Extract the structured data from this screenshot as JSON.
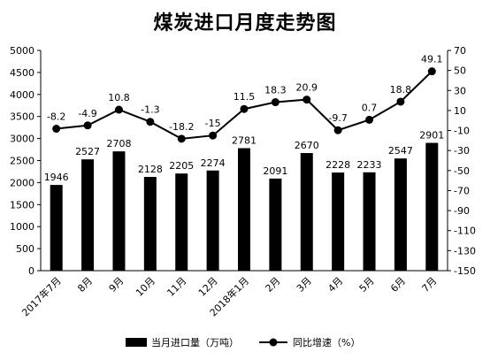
{
  "chart_data": {
    "type": "bar",
    "title": "煤炭进口月度走势图",
    "categories": [
      "2017年7月",
      "8月",
      "9月",
      "10月",
      "11月",
      "12月",
      "2018年1月",
      "2月",
      "3月",
      "4月",
      "5月",
      "6月",
      "7月"
    ],
    "series": [
      {
        "name": "当月进口量（万吨）",
        "type": "bar",
        "axis": "left",
        "color": "#000000",
        "values": [
          1946,
          2527,
          2708,
          2128,
          2205,
          2274,
          2781,
          2091,
          2670,
          2228,
          2233,
          2547,
          2901
        ]
      },
      {
        "name": "同比增速（%）",
        "type": "line",
        "axis": "right",
        "color": "#000000",
        "values": [
          -8.2,
          -4.9,
          10.8,
          -1.3,
          -18.2,
          -15,
          11.5,
          18.3,
          20.9,
          -9.7,
          0.7,
          18.8,
          49.1
        ]
      }
    ],
    "bar_labels": [
      "1946",
      "2527",
      "2708",
      "2128",
      "2205",
      "2274",
      "2781",
      "2091",
      "2670",
      "2228",
      "2233",
      "2547",
      "2901"
    ],
    "line_labels": [
      "-8.2",
      "-4.9",
      "10.8",
      "-1.3",
      "-18.2",
      "-15",
      "11.5",
      "18.3",
      "20.9",
      "-9.7",
      "0.7",
      "18.8",
      "49.1"
    ],
    "y_left": {
      "min": 0,
      "max": 5000,
      "ticks": [
        "0",
        "500",
        "1000",
        "1500",
        "2000",
        "2500",
        "3000",
        "3500",
        "4000",
        "4500",
        "5000"
      ]
    },
    "y_right": {
      "min": -150,
      "max": 70,
      "ticks": [
        "-150",
        "-130",
        "-110",
        "-90",
        "-70",
        "-50",
        "-30",
        "-10",
        "10",
        "30",
        "50",
        "70"
      ]
    },
    "grid": false,
    "legend_position": "bottom"
  }
}
